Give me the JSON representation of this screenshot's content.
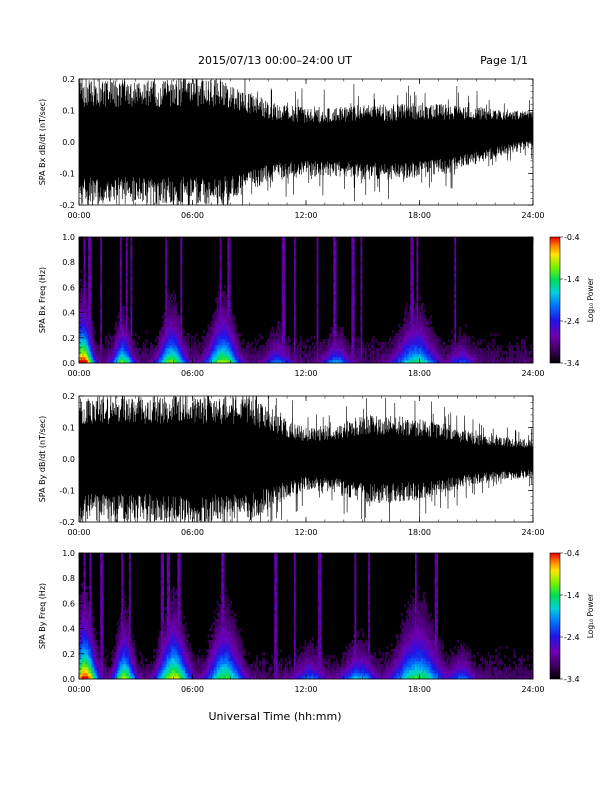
{
  "header": {
    "title": "2015/07/13  00:00–24:00 UT",
    "page": "Page 1/1"
  },
  "footer": {
    "xlabel": "Universal Time (hh:mm)"
  },
  "chart_data": [
    {
      "type": "line",
      "ylabel": "SPA Bx dB/dt (nT/sec)",
      "xlim": [
        "00:00",
        "24:00"
      ],
      "xticks": [
        "00:00",
        "06:00",
        "12:00",
        "18:00",
        "24:00"
      ],
      "ylim": [
        -0.2,
        0.2
      ],
      "yticks": [
        "-0.2",
        "-0.1",
        "0.0",
        "0.1",
        "0.2"
      ],
      "color": "#000000",
      "x_hours": [
        0,
        1.5,
        3.0,
        4.5,
        6.0,
        7.5,
        9.0,
        10.5,
        12.0,
        13.5,
        15.0,
        16.5,
        18.0,
        19.5,
        21.0,
        22.5,
        24.0
      ],
      "envelope_nT_per_s": [
        0.2,
        0.2,
        0.2,
        0.2,
        0.2,
        0.2,
        0.16,
        0.12,
        0.11,
        0.11,
        0.12,
        0.12,
        0.12,
        0.11,
        0.09,
        0.07,
        0.06
      ],
      "envelope_center_nT_per_s": [
        0,
        0,
        0,
        0,
        0,
        0,
        0,
        0,
        0,
        0,
        0,
        0,
        0.005,
        0.01,
        0.02,
        0.03,
        0.04
      ]
    },
    {
      "type": "heatmap",
      "ylabel": "SPA Bx Freq (Hz)",
      "xlim": [
        "00:00",
        "24:00"
      ],
      "xticks": [
        "00:00",
        "06:00",
        "12:00",
        "18:00",
        "24:00"
      ],
      "ylim": [
        0.0,
        1.0
      ],
      "yticks": [
        "0.0",
        "0.2",
        "0.4",
        "0.6",
        "0.8",
        "1.0"
      ],
      "colorbar": {
        "label": "Log₁₀ Power",
        "range": [
          -3.4,
          -0.4
        ],
        "ticks": [
          "-0.4",
          "-1.4",
          "-2.4",
          "-3.4"
        ]
      },
      "bursts": [
        {
          "t": 0.2,
          "power": 1.0,
          "extent_hz": 0.25,
          "width_h": 0.6
        },
        {
          "t": 2.3,
          "power": 0.65,
          "extent_hz": 0.18,
          "width_h": 0.6
        },
        {
          "t": 4.9,
          "power": 0.7,
          "extent_hz": 0.22,
          "width_h": 0.8
        },
        {
          "t": 7.6,
          "power": 0.7,
          "extent_hz": 0.25,
          "width_h": 0.9
        },
        {
          "t": 10.5,
          "power": 0.35,
          "extent_hz": 0.12,
          "width_h": 0.8
        },
        {
          "t": 13.6,
          "power": 0.4,
          "extent_hz": 0.12,
          "width_h": 0.8
        },
        {
          "t": 17.8,
          "power": 0.55,
          "extent_hz": 0.22,
          "width_h": 1.2
        },
        {
          "t": 20.2,
          "power": 0.3,
          "extent_hz": 0.1,
          "width_h": 0.8
        }
      ],
      "streaks_h": [
        0.3,
        0.55,
        1.15,
        2.2,
        2.5,
        2.75,
        4.6,
        5.4,
        7.5,
        7.9,
        10.8,
        11.4,
        12.6,
        13.5,
        14.5,
        14.9,
        17.6,
        17.9,
        19.9
      ]
    },
    {
      "type": "line",
      "ylabel": "SPA By dB/dt (nT/sec)",
      "xlim": [
        "00:00",
        "24:00"
      ],
      "xticks": [
        "00:00",
        "06:00",
        "12:00",
        "18:00",
        "24:00"
      ],
      "ylim": [
        -0.2,
        0.2
      ],
      "yticks": [
        "-0.2",
        "-0.1",
        "0.0",
        "0.1",
        "0.2"
      ],
      "color": "#000000",
      "x_hours": [
        0,
        1.5,
        3.0,
        4.5,
        6.0,
        7.5,
        9.0,
        10.5,
        12.0,
        13.5,
        15.0,
        16.5,
        18.0,
        19.5,
        21.0,
        22.5,
        24.0
      ],
      "envelope_nT_per_s": [
        0.2,
        0.2,
        0.2,
        0.2,
        0.2,
        0.2,
        0.2,
        0.14,
        0.1,
        0.11,
        0.14,
        0.14,
        0.13,
        0.11,
        0.08,
        0.07,
        0.06
      ],
      "envelope_center_nT_per_s": [
        0,
        0,
        0,
        0,
        0,
        0,
        0,
        0,
        0,
        0,
        0,
        0,
        0,
        0,
        0,
        0,
        0
      ]
    },
    {
      "type": "heatmap",
      "ylabel": "SPA By Freq (Hz)",
      "xlim": [
        "00:00",
        "24:00"
      ],
      "xticks": [
        "00:00",
        "06:00",
        "12:00",
        "18:00",
        "24:00"
      ],
      "ylim": [
        0.0,
        1.0
      ],
      "yticks": [
        "0.0",
        "0.2",
        "0.4",
        "0.6",
        "0.8",
        "1.0"
      ],
      "colorbar": {
        "label": "Log₁₀ Power",
        "range": [
          -3.4,
          -0.4
        ],
        "ticks": [
          "-0.4",
          "-1.4",
          "-2.4",
          "-3.4"
        ]
      },
      "bursts": [
        {
          "t": 0.3,
          "power": 0.95,
          "extent_hz": 0.3,
          "width_h": 0.7
        },
        {
          "t": 2.4,
          "power": 0.7,
          "extent_hz": 0.25,
          "width_h": 0.6
        },
        {
          "t": 5.0,
          "power": 0.75,
          "extent_hz": 0.3,
          "width_h": 0.9
        },
        {
          "t": 7.7,
          "power": 0.6,
          "extent_hz": 0.3,
          "width_h": 1.0
        },
        {
          "t": 12.2,
          "power": 0.35,
          "extent_hz": 0.12,
          "width_h": 1.0
        },
        {
          "t": 14.8,
          "power": 0.45,
          "extent_hz": 0.15,
          "width_h": 1.0
        },
        {
          "t": 17.9,
          "power": 0.6,
          "extent_hz": 0.3,
          "width_h": 1.4
        },
        {
          "t": 20.2,
          "power": 0.35,
          "extent_hz": 0.12,
          "width_h": 0.8
        }
      ],
      "streaks_h": [
        0.3,
        0.6,
        1.2,
        2.3,
        2.7,
        4.4,
        4.7,
        5.3,
        7.6,
        10.4,
        11.4,
        12.7,
        14.6,
        15.3,
        17.8,
        18.9
      ]
    }
  ]
}
